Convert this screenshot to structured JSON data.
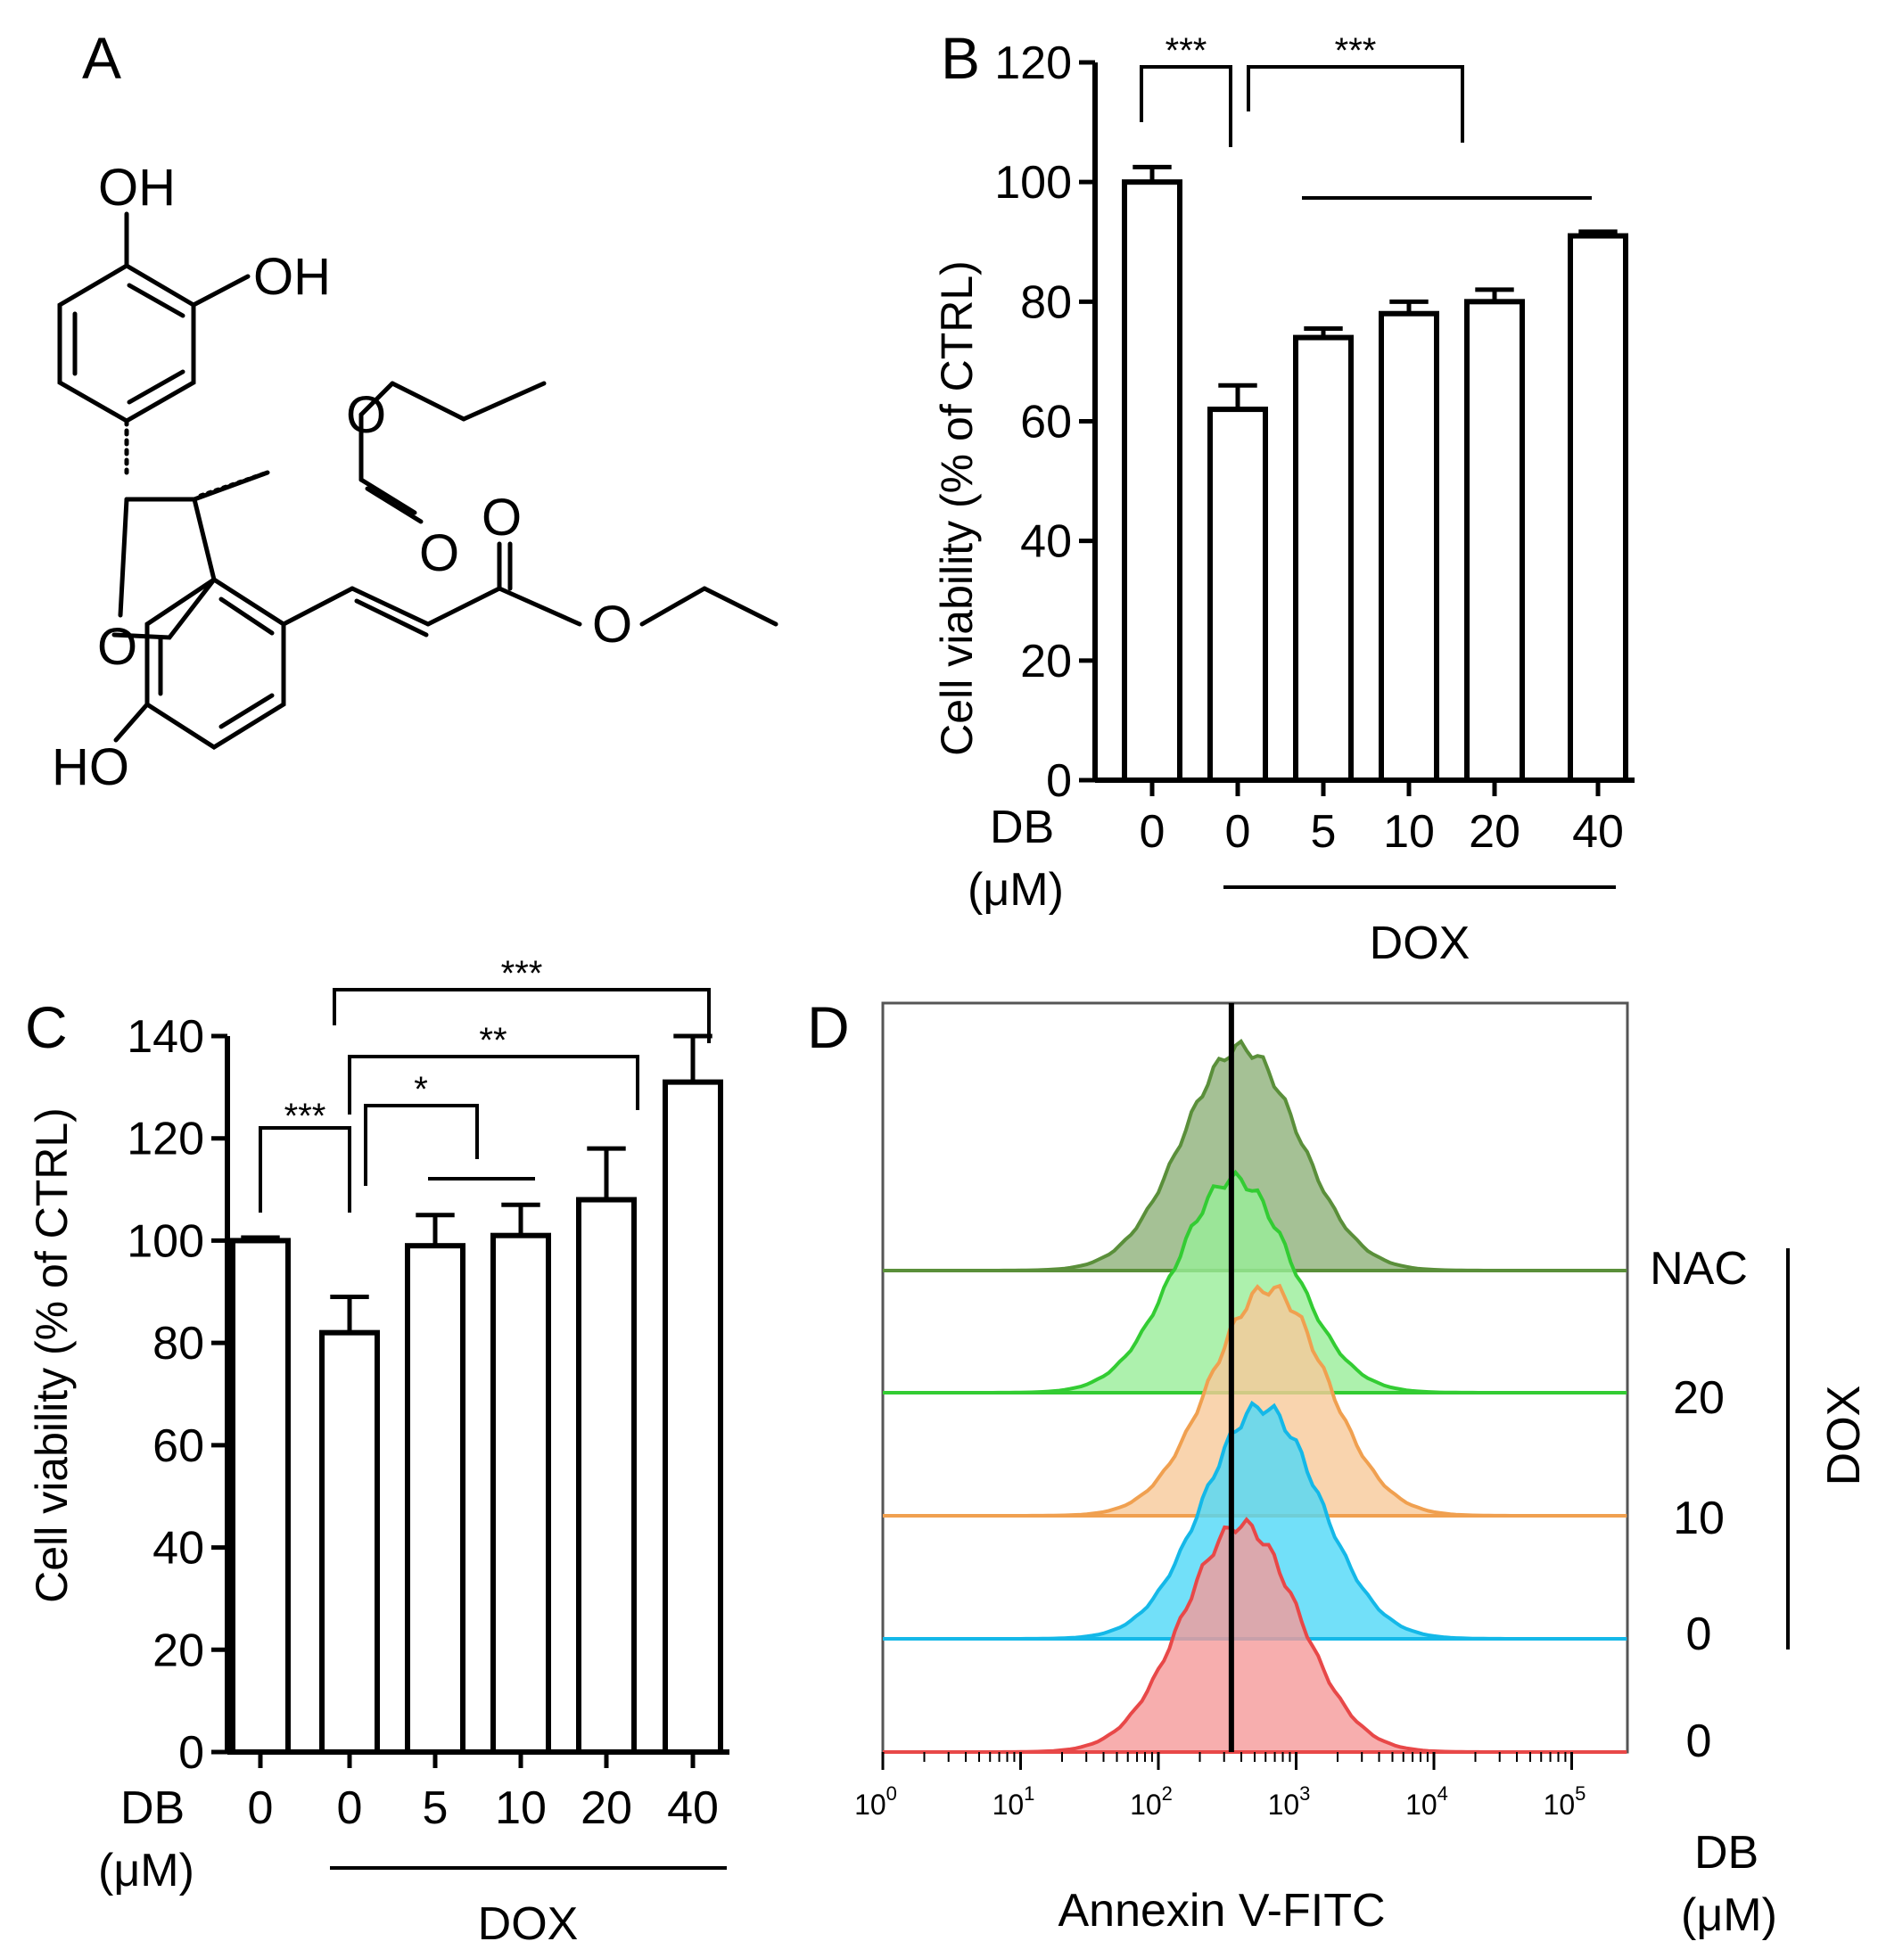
{
  "panels": {
    "a": "A",
    "b": "B",
    "c": "C",
    "d": "D"
  },
  "structure": {
    "atoms": [
      "OH",
      "OH",
      "O",
      "O",
      "O",
      "O",
      "O",
      "HO"
    ]
  },
  "chart_data": [
    {
      "id": "B",
      "type": "bar",
      "ylabel": "Cell viability (% of CTRL)",
      "ylim": [
        0,
        120
      ],
      "yticks": [
        "0",
        "20",
        "40",
        "60",
        "80",
        "100",
        "120"
      ],
      "row_label": "DB",
      "row_unit": "(μM)",
      "categories": [
        "0",
        "0",
        "5",
        "10",
        "20",
        "40"
      ],
      "values": [
        100,
        62,
        74,
        78,
        80,
        91
      ],
      "errors": [
        2.5,
        4,
        1.5,
        2,
        2,
        0.7
      ],
      "group_label": "DOX",
      "significance": [
        "***",
        "***"
      ]
    },
    {
      "id": "C",
      "type": "bar",
      "ylabel": "Cell viability (% of CTRL)",
      "ylim": [
        0,
        140
      ],
      "yticks": [
        "0",
        "20",
        "40",
        "60",
        "80",
        "100",
        "120",
        "140"
      ],
      "row_label": "DB",
      "row_unit": "(μM)",
      "categories": [
        "0",
        "0",
        "5",
        "10",
        "20",
        "40"
      ],
      "values": [
        100,
        82,
        99,
        101,
        108,
        131
      ],
      "errors": [
        0.6,
        7,
        6,
        6,
        10,
        9
      ],
      "group_label": "DOX",
      "significance": [
        "***",
        "*",
        "**",
        "***"
      ]
    },
    {
      "id": "D",
      "type": "histogram",
      "xlabel": "Annexin V-FITC",
      "x_scale": "log",
      "xticks": [
        {
          "base": "10",
          "exp": "0"
        },
        {
          "base": "10",
          "exp": "1"
        },
        {
          "base": "10",
          "exp": "2"
        },
        {
          "base": "10",
          "exp": "3"
        },
        {
          "base": "10",
          "exp": "4"
        },
        {
          "base": "10",
          "exp": "5"
        }
      ],
      "gate_log10": 2.53,
      "series": [
        {
          "label": "NAC",
          "color": "#5a8f3a",
          "fill": "#8fb27a",
          "peak_log10": 2.6
        },
        {
          "label": "20",
          "color": "#33cc33",
          "fill": "#99ee99",
          "peak_log10": 2.55
        },
        {
          "label": "10",
          "color": "#f0a050",
          "fill": "#f7c99a",
          "peak_log10": 2.8
        },
        {
          "label": "0",
          "color": "#14b8e8",
          "fill": "#4fd8f8",
          "peak_log10": 2.75
        },
        {
          "label": "0",
          "color": "#e84848",
          "fill": "#f59a9a",
          "peak_log10": 2.6
        }
      ],
      "group_label": "DOX",
      "row_label": "DB",
      "row_unit": "(μM)"
    }
  ]
}
